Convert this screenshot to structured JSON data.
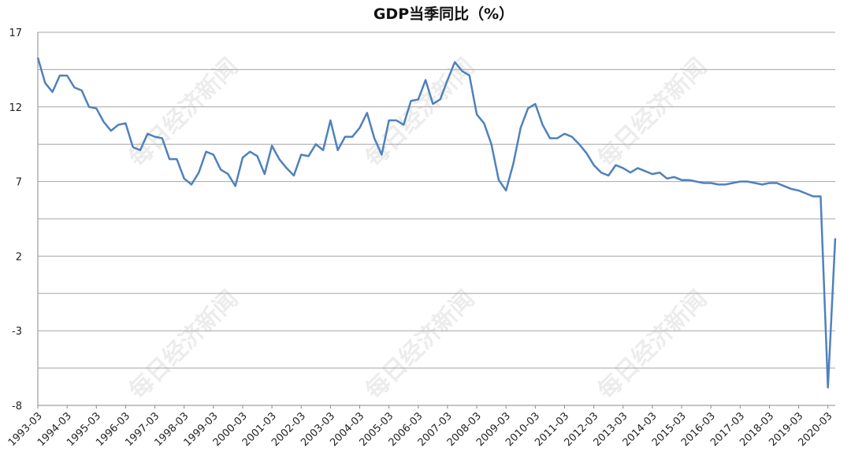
{
  "chart_data": {
    "type": "line",
    "title": "GDP当季同比（%）",
    "xlabel": "",
    "ylabel": "",
    "ylim": [
      -8,
      17
    ],
    "y_ticks": [
      17,
      12,
      7,
      2,
      -3,
      -8
    ],
    "grid": true,
    "legend": "none",
    "color": "#4f81bd",
    "x_tick_labels": [
      "1993-03",
      "1994-03",
      "1995-03",
      "1996-03",
      "1997-03",
      "1998-03",
      "1999-03",
      "2000-03",
      "2001-03",
      "2002-03",
      "2003-03",
      "2004-03",
      "2005-03",
      "2006-03",
      "2007-03",
      "2008-03",
      "2009-03",
      "2010-03",
      "2011-03",
      "2012-03",
      "2013-03",
      "2014-03",
      "2015-03",
      "2016-03",
      "2017-03",
      "2018-03",
      "2019-03",
      "2020-03"
    ],
    "start_quarter": "1993-03",
    "values": [
      15.3,
      13.6,
      13.0,
      14.1,
      14.1,
      13.3,
      13.1,
      12.0,
      11.9,
      11.0,
      10.4,
      10.8,
      10.9,
      9.3,
      9.1,
      10.2,
      10.0,
      9.9,
      8.5,
      8.5,
      7.2,
      6.8,
      7.6,
      9.0,
      8.8,
      7.8,
      7.5,
      6.7,
      8.6,
      9.0,
      8.7,
      7.5,
      9.4,
      8.5,
      7.9,
      7.4,
      8.8,
      8.7,
      9.5,
      9.1,
      11.1,
      9.1,
      10.0,
      10.0,
      10.6,
      11.6,
      9.9,
      8.8,
      11.1,
      11.1,
      10.8,
      12.4,
      12.5,
      13.8,
      12.2,
      12.5,
      13.8,
      15.0,
      14.4,
      14.1,
      11.5,
      10.9,
      9.5,
      7.1,
      6.4,
      8.2,
      10.6,
      11.9,
      12.2,
      10.8,
      9.9,
      9.9,
      10.2,
      10.0,
      9.5,
      8.9,
      8.1,
      7.6,
      7.4,
      8.1,
      7.9,
      7.6,
      7.9,
      7.7,
      7.5,
      7.6,
      7.2,
      7.3,
      7.1,
      7.1,
      7.0,
      6.9,
      6.9,
      6.8,
      6.8,
      6.9,
      7.0,
      7.0,
      6.9,
      6.8,
      6.9,
      6.9,
      6.7,
      6.5,
      6.4,
      6.2,
      6.0,
      6.0,
      -6.8,
      3.2
    ],
    "watermarks": [
      "每日经济新闻",
      "每日经济新闻",
      "每日经济新闻",
      "每日经济新闻",
      "每日经济新闻",
      "每日经济新闻"
    ]
  }
}
